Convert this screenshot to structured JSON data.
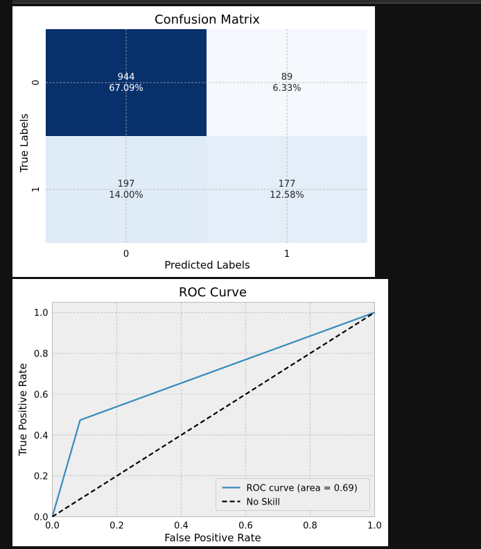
{
  "chart_data": [
    {
      "type": "heatmap",
      "title": "Confusion Matrix",
      "xlabel": "Predicted Labels",
      "ylabel": "True Labels",
      "x_ticks": [
        "0",
        "1"
      ],
      "y_ticks": [
        "0",
        "1"
      ],
      "cells": [
        {
          "row": 0,
          "col": 0,
          "value": 944,
          "percent": "67.09%",
          "color": "#08306b",
          "text_color": "#ffffff"
        },
        {
          "row": 0,
          "col": 1,
          "value": 89,
          "percent": "6.33%",
          "color": "#f5f9fe",
          "text_color": "#262626"
        },
        {
          "row": 1,
          "col": 0,
          "value": 197,
          "percent": "14.00%",
          "color": "#dfebf7",
          "text_color": "#262626"
        },
        {
          "row": 1,
          "col": 1,
          "value": 177,
          "percent": "12.58%",
          "color": "#e3eef9",
          "text_color": "#262626"
        }
      ],
      "grid": true
    },
    {
      "type": "line",
      "title": "ROC Curve",
      "xlabel": "False Positive Rate",
      "ylabel": "True Positive Rate",
      "xlim": [
        0.0,
        1.0
      ],
      "ylim": [
        0.0,
        1.05
      ],
      "x_ticks": [
        0.0,
        0.2,
        0.4,
        0.6,
        0.8,
        1.0
      ],
      "y_ticks": [
        0.0,
        0.2,
        0.4,
        0.6,
        0.8,
        1.0
      ],
      "x_tick_labels": [
        "0.0",
        "0.2",
        "0.4",
        "0.6",
        "0.8",
        "1.0"
      ],
      "y_tick_labels": [
        "0.0",
        "0.2",
        "0.4",
        "0.6",
        "0.8",
        "1.0"
      ],
      "grid": true,
      "legend_position": "lower-right",
      "series": [
        {
          "name": "ROC curve (area = 0.69)",
          "x": [
            0.0,
            0.0862,
            1.0
          ],
          "y": [
            0.0,
            0.4733,
            1.0
          ],
          "color": "#348abd",
          "dash": "solid"
        },
        {
          "name": "No Skill",
          "x": [
            0.0,
            1.0
          ],
          "y": [
            0.0,
            1.0
          ],
          "color": "#000000",
          "dash": "dashed"
        }
      ]
    }
  ]
}
